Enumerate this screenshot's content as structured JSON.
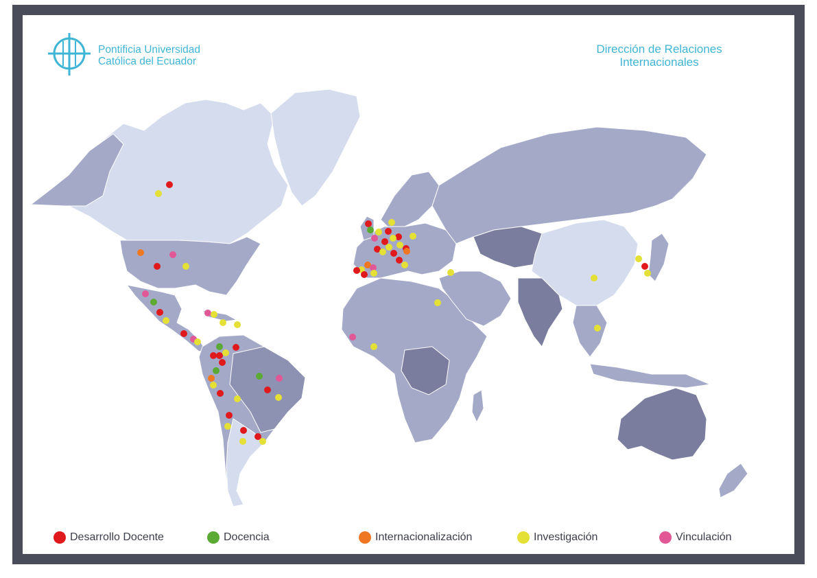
{
  "header": {
    "org_line1": "Pontificia Universidad",
    "org_line2": "Católica del Ecuador",
    "title_line1": "Dirección de Relaciones",
    "title_line2": "Internacionales"
  },
  "colors": {
    "frame": "#4a4c5a",
    "accent": "#3fb5d6",
    "land_light": "#d5dcee",
    "land_mid": "#a4a9c8",
    "land_dark": "#7a7d9d",
    "desarrollo_docente": "#e0191d",
    "docencia": "#5aaa33",
    "internacionalizacion": "#ef7721",
    "investigacion": "#e4e035",
    "vinculacion": "#e25896"
  },
  "legend": [
    {
      "key": "desarrollo_docente",
      "label": "Desarrollo Docente"
    },
    {
      "key": "docencia",
      "label": "Docencia"
    },
    {
      "key": "internacionalizacion",
      "label": "Internacionalización"
    },
    {
      "key": "investigacion",
      "label": "Investigación"
    },
    {
      "key": "vinculacion",
      "label": "Vinculación"
    }
  ],
  "icons": {
    "logo": "pucE-cross-logo-icon"
  }
}
